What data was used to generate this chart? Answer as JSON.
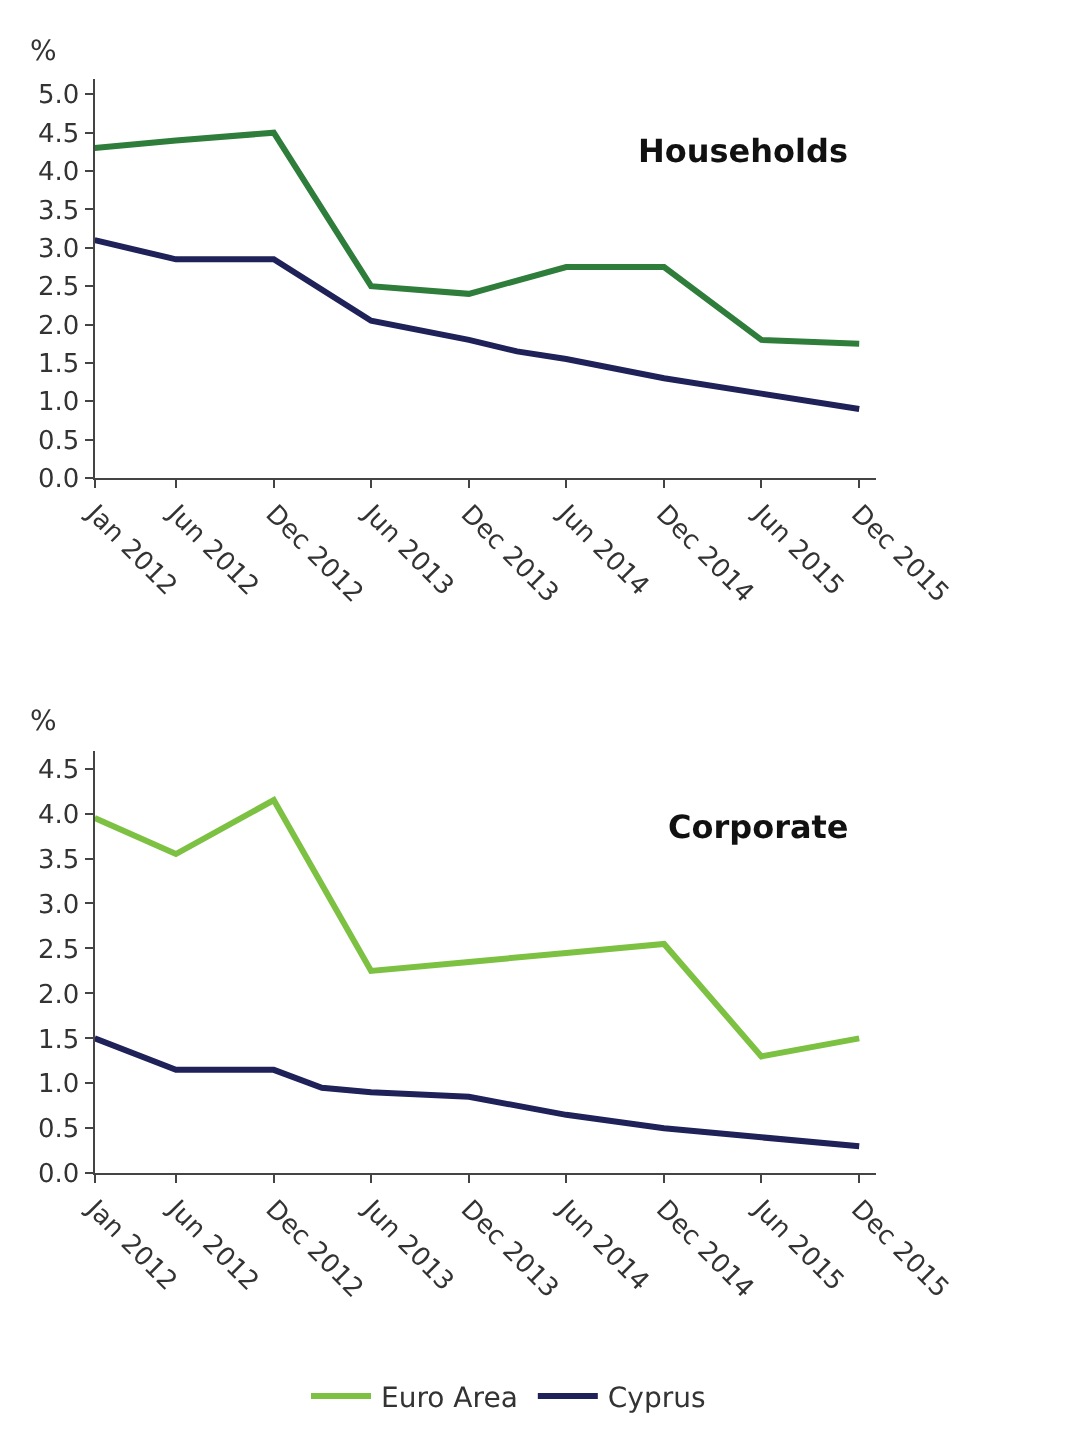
{
  "chart_data": [
    {
      "type": "line",
      "title": "Households",
      "ylabel": "%",
      "x": [
        "2012-01",
        "2012-06",
        "2012-12",
        "2013-06",
        "2013-12",
        "2014-06",
        "2014-12",
        "2015-06",
        "2015-12"
      ],
      "series": [
        {
          "color": "#2f7d3b",
          "values": [
            4.3,
            4.4,
            4.5,
            2.5,
            2.4,
            2.75,
            2.75,
            1.8,
            1.75
          ]
        },
        {
          "color": "#1f2159",
          "x": [
            "2012-01",
            "2012-06",
            "2012-12",
            "2013-06",
            "2013-12",
            "2014-03",
            "2014-06",
            "2014-12",
            "2015-06",
            "2015-12"
          ],
          "values": [
            3.1,
            2.85,
            2.85,
            2.05,
            1.8,
            1.65,
            1.55,
            1.3,
            1.1,
            0.9
          ]
        }
      ],
      "xlim": [
        "2012-01",
        "2016-01"
      ],
      "ylim": [
        0,
        5.2
      ],
      "xticks": [
        {
          "value": "2012-01",
          "label": "Jan 2012"
        },
        {
          "value": "2012-06",
          "label": "Jun 2012"
        },
        {
          "value": "2012-12",
          "label": "Dec 2012"
        },
        {
          "value": "2013-06",
          "label": "Jun 2013"
        },
        {
          "value": "2013-12",
          "label": "Dec 2013"
        },
        {
          "value": "2014-06",
          "label": "Jun 2014"
        },
        {
          "value": "2014-12",
          "label": "Dec 2014"
        },
        {
          "value": "2015-06",
          "label": "Jun 2015"
        },
        {
          "value": "2015-12",
          "label": "Dec 2015"
        }
      ],
      "yticks": [
        {
          "value": 0,
          "label": "0.0"
        },
        {
          "value": 0.5,
          "label": "0.5"
        },
        {
          "value": 1,
          "label": "1.0"
        },
        {
          "value": 1.5,
          "label": "1.5"
        },
        {
          "value": 2,
          "label": "2.0"
        },
        {
          "value": 2.5,
          "label": "2.5"
        },
        {
          "value": 3,
          "label": "3.0"
        },
        {
          "value": 3.5,
          "label": "3.5"
        },
        {
          "value": 4,
          "label": "4.0"
        },
        {
          "value": 4.5,
          "label": "4.5"
        },
        {
          "value": 5,
          "label": "5.0"
        }
      ],
      "legend": false
    },
    {
      "type": "line",
      "title": "Corporate",
      "ylabel": "%",
      "x": [
        "2012-01",
        "2012-06",
        "2012-12",
        "2013-06",
        "2013-12",
        "2014-06",
        "2014-12",
        "2015-06",
        "2015-12"
      ],
      "series": [
        {
          "name": "Euro Area",
          "color": "#7cc142",
          "values": [
            3.95,
            3.55,
            4.15,
            2.25,
            2.35,
            2.45,
            2.55,
            1.3,
            1.5
          ]
        },
        {
          "name": "Cyprus",
          "color": "#1f2159",
          "x": [
            "2012-01",
            "2012-06",
            "2012-12",
            "2013-03",
            "2013-06",
            "2013-12",
            "2014-06",
            "2014-12",
            "2015-06",
            "2015-12"
          ],
          "values": [
            1.5,
            1.15,
            1.15,
            0.95,
            0.9,
            0.85,
            0.65,
            0.5,
            0.4,
            0.3
          ]
        }
      ],
      "xlim": [
        "2012-01",
        "2016-01"
      ],
      "ylim": [
        0,
        4.7
      ],
      "xticks": [
        {
          "value": "2012-01",
          "label": "Jan 2012"
        },
        {
          "value": "2012-06",
          "label": "Jun 2012"
        },
        {
          "value": "2012-12",
          "label": "Dec 2012"
        },
        {
          "value": "2013-06",
          "label": "Jun 2013"
        },
        {
          "value": "2013-12",
          "label": "Dec 2013"
        },
        {
          "value": "2014-06",
          "label": "Jun 2014"
        },
        {
          "value": "2014-12",
          "label": "Dec 2014"
        },
        {
          "value": "2015-06",
          "label": "Jun 2015"
        },
        {
          "value": "2015-12",
          "label": "Dec 2015"
        }
      ],
      "yticks": [
        {
          "value": 0,
          "label": "0.0"
        },
        {
          "value": 0.5,
          "label": "0.5"
        },
        {
          "value": 1,
          "label": "1.0"
        },
        {
          "value": 1.5,
          "label": "1.5"
        },
        {
          "value": 2,
          "label": "2.0"
        },
        {
          "value": 2.5,
          "label": "2.5"
        },
        {
          "value": 3,
          "label": "3.0"
        },
        {
          "value": 3.5,
          "label": "3.5"
        },
        {
          "value": 4,
          "label": "4.0"
        },
        {
          "value": 4.5,
          "label": "4.5"
        }
      ],
      "legend": "bottom"
    }
  ]
}
